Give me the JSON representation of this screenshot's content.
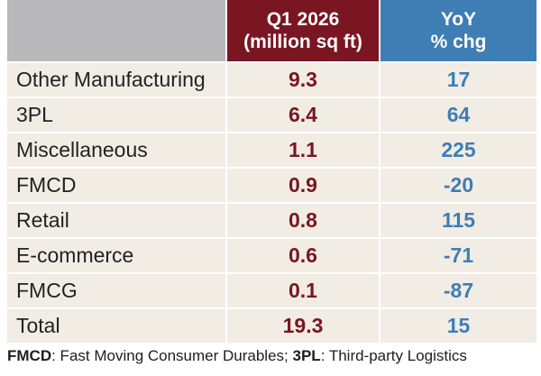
{
  "chart_data": {
    "type": "table",
    "columns": [
      "",
      "Q1 2026 (million sq ft)",
      "YoY % chg"
    ],
    "header": {
      "q1_line1": "Q1 2026",
      "q1_line2": "(million sq ft)",
      "yoy_line1": "YoY",
      "yoy_line2": "% chg"
    },
    "rows": [
      {
        "category": "Other Manufacturing",
        "q1": "9.3",
        "yoy": "17"
      },
      {
        "category": "3PL",
        "q1": "6.4",
        "yoy": "64"
      },
      {
        "category": "Miscellaneous",
        "q1": "1.1",
        "yoy": "225"
      },
      {
        "category": "FMCD",
        "q1": "0.9",
        "yoy": "-20"
      },
      {
        "category": "Retail",
        "q1": "0.8",
        "yoy": "115"
      },
      {
        "category": "E-commerce",
        "q1": "0.6",
        "yoy": "-71"
      },
      {
        "category": "FMCG",
        "q1": "0.1",
        "yoy": "-87"
      },
      {
        "category": "Total",
        "q1": "19.3",
        "yoy": "15"
      }
    ]
  },
  "footnote": {
    "abbr1": "FMCD",
    "def1": ": Fast Moving Consumer Durables; ",
    "abbr2": "3PL",
    "def2": ": Third-party Logistics"
  },
  "colors": {
    "header_blank": "#b9b9bb",
    "q1_header": "#7a1622",
    "yoy_header": "#3f7db5",
    "row_background": "#f1ede4",
    "q1_values": "#7a1622",
    "yoy_values": "#3f7db5"
  }
}
